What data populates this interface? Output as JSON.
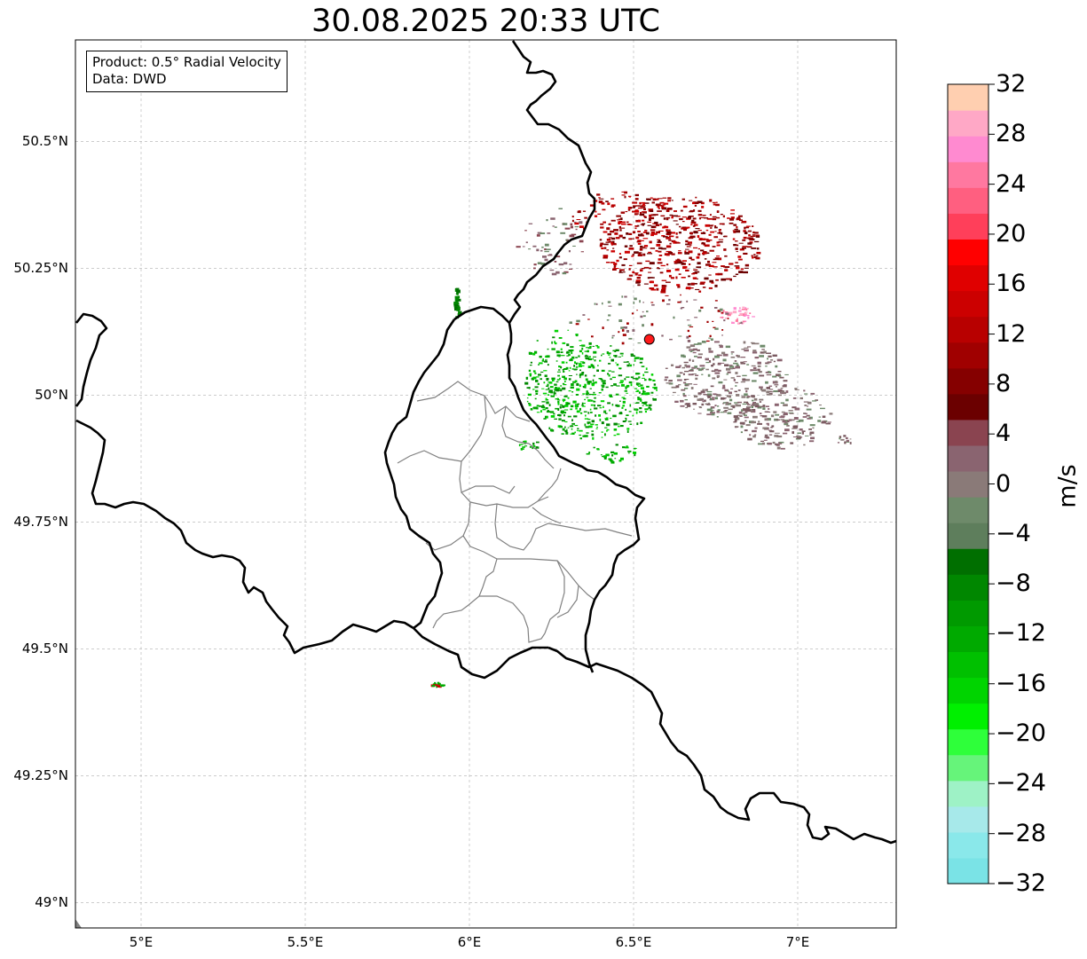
{
  "title": "30.08.2025 20:33 UTC",
  "info": {
    "product": "Product: 0.5° Radial Velocity",
    "data": "Data: DWD"
  },
  "map": {
    "lat_ticks": [
      {
        "value": 50.5,
        "label": "50.5°N"
      },
      {
        "value": 50.25,
        "label": "50.25°N"
      },
      {
        "value": 50.0,
        "label": "50°N"
      },
      {
        "value": 49.75,
        "label": "49.75°N"
      },
      {
        "value": 49.5,
        "label": "49.5°N"
      },
      {
        "value": 49.25,
        "label": "49.25°N"
      },
      {
        "value": 49.0,
        "label": "49°N"
      }
    ],
    "lon_ticks": [
      {
        "value": 5.0,
        "label": "5°E"
      },
      {
        "value": 5.5,
        "label": "5.5°E"
      },
      {
        "value": 6.0,
        "label": "6°E"
      },
      {
        "value": 6.5,
        "label": "6.5°E"
      },
      {
        "value": 7.0,
        "label": "7°E"
      }
    ],
    "extent": {
      "lon_min": 4.8,
      "lon_max": 7.3,
      "lat_min": 48.95,
      "lat_max": 50.7
    },
    "gridlines": true,
    "radar_site": {
      "lon": 6.548,
      "lat": 50.11
    },
    "colors": {
      "border": "#000000",
      "admin": "#808080",
      "grid": "#bbbbbb",
      "radar_marker": "#ff1a1a"
    }
  },
  "colorbar": {
    "unit": "m/s",
    "min": -32,
    "max": 32,
    "ticks": [
      {
        "value": 32,
        "label": "32"
      },
      {
        "value": 28,
        "label": "28"
      },
      {
        "value": 24,
        "label": "24"
      },
      {
        "value": 20,
        "label": "20"
      },
      {
        "value": 16,
        "label": "16"
      },
      {
        "value": 12,
        "label": "12"
      },
      {
        "value": 8,
        "label": "8"
      },
      {
        "value": 4,
        "label": "4"
      },
      {
        "value": 0,
        "label": "0"
      },
      {
        "value": -4,
        "label": "−4"
      },
      {
        "value": -8,
        "label": "−8"
      },
      {
        "value": -12,
        "label": "−12"
      },
      {
        "value": -16,
        "label": "−16"
      },
      {
        "value": -20,
        "label": "−20"
      },
      {
        "value": -24,
        "label": "−24"
      },
      {
        "value": -28,
        "label": "−28"
      },
      {
        "value": -32,
        "label": "−32"
      }
    ],
    "bands": [
      "#7ae3e6",
      "#8ae8ea",
      "#a7e9ea",
      "#9ef2c6",
      "#66f47a",
      "#2eff3a",
      "#00f000",
      "#00d400",
      "#00c000",
      "#00aa00",
      "#009a00",
      "#008700",
      "#006f00",
      "#5e7e5c",
      "#6e8a6a",
      "#8a7a78",
      "#8a6470",
      "#8a4450",
      "#6b0000",
      "#850000",
      "#a00000",
      "#b80000",
      "#cc0000",
      "#e00000",
      "#ff0000",
      "#ff3f5a",
      "#ff5f80",
      "#ff78a0",
      "#ff8ad0",
      "#ffa8c6",
      "#ffcfb0"
    ]
  }
}
